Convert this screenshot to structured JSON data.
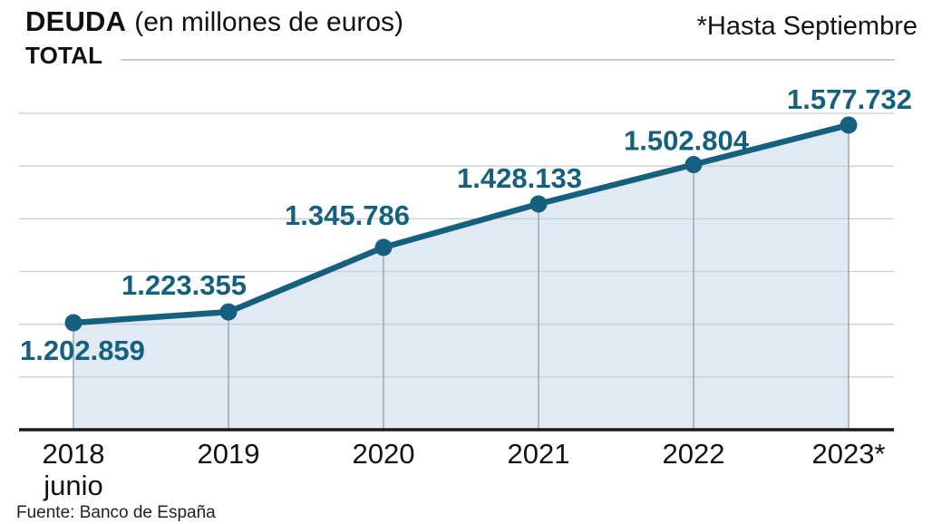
{
  "header": {
    "title": "DEUDA",
    "subtitle": "(en millones de euros)",
    "series_label": "TOTAL",
    "note": "*Hasta Septiembre"
  },
  "footer": {
    "source": "Fuente: Banco de España"
  },
  "colors": {
    "line": "#15607E",
    "marker": "#15607E",
    "area_fill": "#E1EAF2",
    "grid": "#CBCED3",
    "year_guide": "#9DABB9",
    "axis": "#1A1A1A",
    "value_label": "#15607E",
    "axis_label": "#111111"
  },
  "chart_data": {
    "type": "area",
    "title": "DEUDA (en millones de euros)",
    "series_name": "TOTAL",
    "note": "*Hasta Septiembre",
    "source": "Fuente: Banco de España",
    "categories": [
      "2018",
      "2019",
      "2020",
      "2021",
      "2022",
      "2023*"
    ],
    "category_sublabels": [
      "junio",
      "",
      "",
      "",
      "",
      ""
    ],
    "values": [
      1202859,
      1223355,
      1345786,
      1428133,
      1502804,
      1577732
    ],
    "value_labels": [
      "1.202.859",
      "1.223.355",
      "1.345.786",
      "1.428.133",
      "1.502.804",
      "1.577.732"
    ],
    "ylim": [
      1000000,
      1600000
    ],
    "grid_step": 100000,
    "grid": "horizontal-only",
    "legend": "none",
    "xlabel": "",
    "ylabel": ""
  }
}
